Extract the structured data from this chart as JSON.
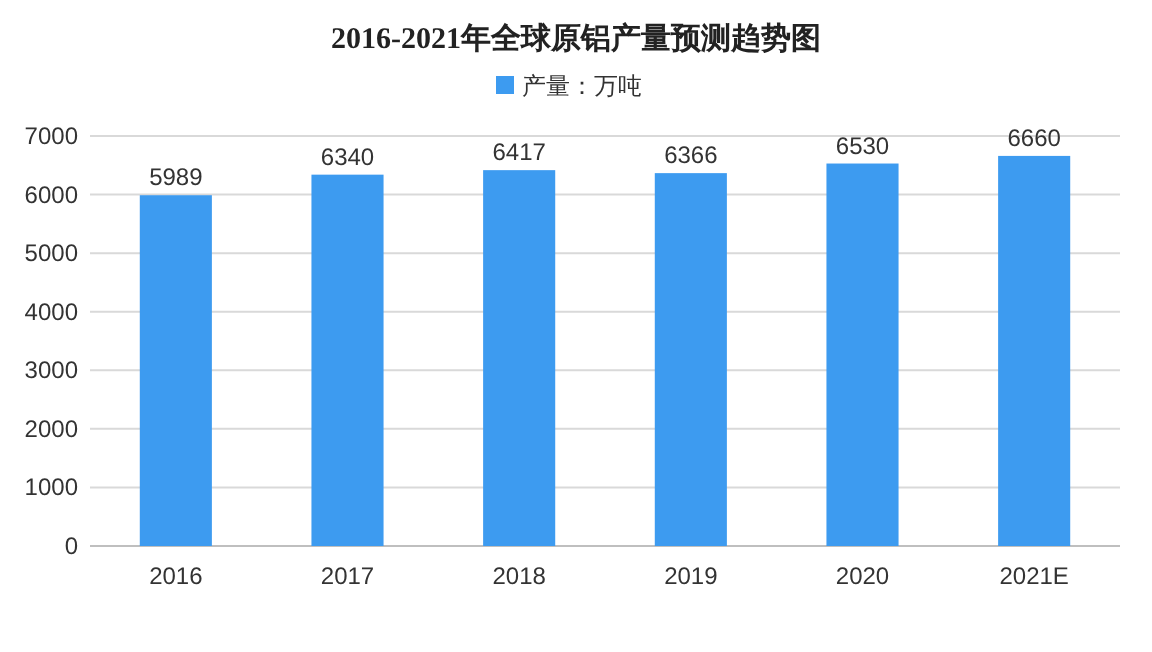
{
  "chart_data": {
    "type": "bar",
    "title": "2016-2021年全球原铝产量预测趋势图",
    "categories": [
      "2016",
      "2017",
      "2018",
      "2019",
      "2020",
      "2021E"
    ],
    "series": [
      {
        "name": "产量：万吨",
        "color": "#3d9bf0",
        "values": [
          5989,
          6340,
          6417,
          6366,
          6530,
          6660
        ]
      }
    ],
    "ylim": [
      0,
      7000
    ],
    "yticks": [
      0,
      1000,
      2000,
      3000,
      4000,
      5000,
      6000,
      7000
    ],
    "grid": "y",
    "legend": "top",
    "data_labels": true
  }
}
